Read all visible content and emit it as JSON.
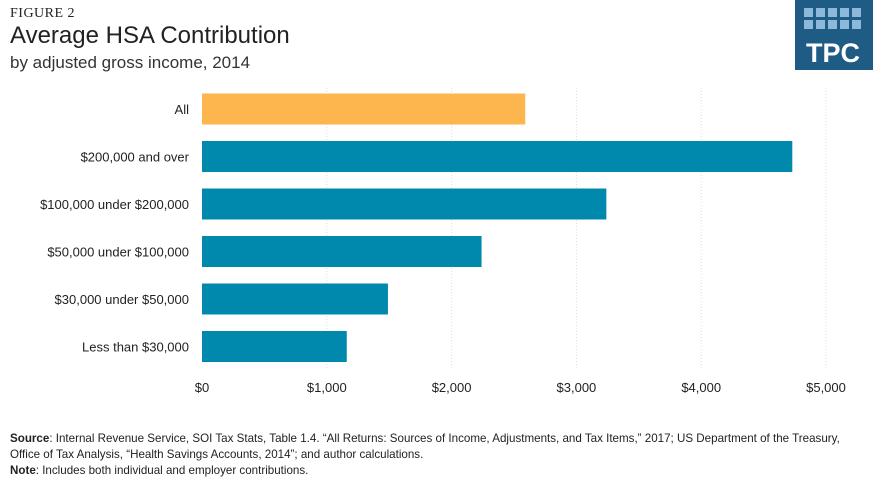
{
  "figure_label": "FIGURE 2",
  "logo_text": "TPC",
  "colors": {
    "highlight": "#FDB64E",
    "bar": "#0089AD",
    "logo_bg": "#1E5B85",
    "grid": "#dddddd"
  },
  "footer": {
    "source_label": "Source",
    "source_text": ": Internal Revenue Service, SOI Tax Stats, Table 1.4. “All Returns: Sources of Income, Adjustments, and Tax Items,” 2017; US Department of the Treasury, Office of Tax Analysis, “Health Savings Accounts, 2014”; and author calculations.",
    "note_label": "Note",
    "note_text": ": Includes both individual  and employer contributions."
  },
  "chart_data": {
    "type": "bar",
    "orientation": "horizontal",
    "title": "Average HSA Contribution",
    "subtitle": "by adjusted gross income, 2014",
    "categories": [
      "All",
      "$200,000 and over",
      "$100,000 under $200,000",
      "$50,000 under $100,000",
      "$30,000 under $50,000",
      "Less than $30,000"
    ],
    "values": [
      2590,
      4730,
      3240,
      2240,
      1490,
      1160
    ],
    "highlight_index": 0,
    "xlim": [
      0,
      5000
    ],
    "xticks": [
      0,
      1000,
      2000,
      3000,
      4000,
      5000
    ],
    "xtick_labels": [
      "$0",
      "$1,000",
      "$2,000",
      "$3,000",
      "$4,000",
      "$5,000"
    ],
    "grid": "vertical-dotted",
    "legend": "none"
  }
}
